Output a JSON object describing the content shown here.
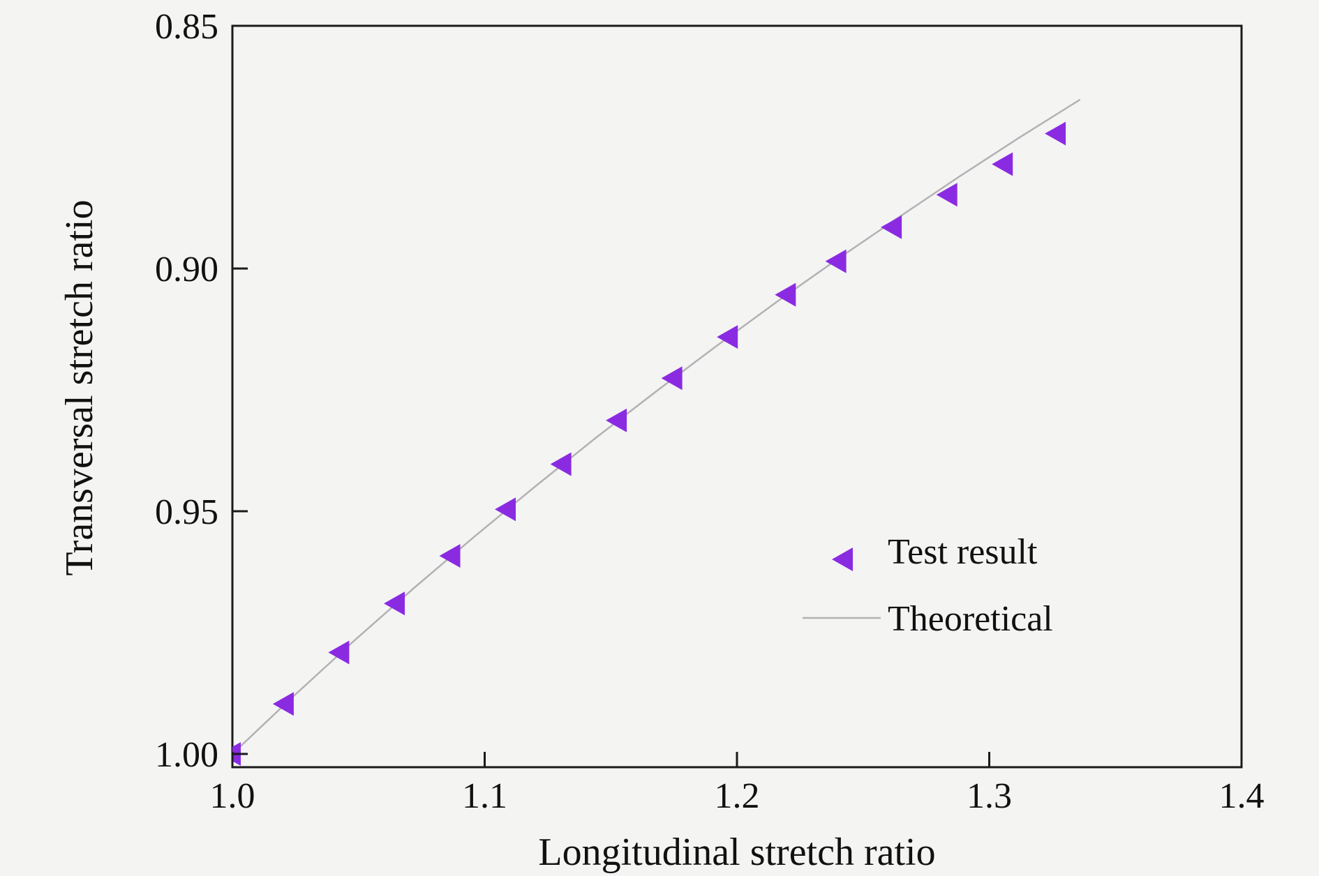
{
  "figure": {
    "background": "#f4f4f3",
    "frame_color": "#1a1a1a",
    "text_color": "#111111"
  },
  "chart_data": {
    "type": "scatter",
    "title": "",
    "xlabel": "Longitudinal stretch ratio",
    "ylabel": "Transversal stretch ratio",
    "xlim": [
      1.0,
      1.4
    ],
    "ylim": [
      0.85,
      1.0
    ],
    "y_axis_inverted": true,
    "grid": false,
    "x_ticks": [
      1.0,
      1.1,
      1.2,
      1.3,
      1.4
    ],
    "x_tick_labels": [
      "1.0",
      "1.1",
      "1.2",
      "1.3",
      "1.4"
    ],
    "y_ticks": [
      0.85,
      0.9,
      0.95,
      1.0
    ],
    "y_tick_labels": [
      "0.85",
      "0.90",
      "0.95",
      "1.00"
    ],
    "legend": {
      "position": "inside-right-center",
      "entries": [
        {
          "label": "Test result",
          "type": "marker",
          "marker": "left-triangle",
          "color": "#8A2BE2"
        },
        {
          "label": "Theoretical",
          "type": "line",
          "color": "#b3b1b5"
        }
      ]
    },
    "series": [
      {
        "name": "Test result",
        "type": "scatter",
        "marker": "left-triangle",
        "color": "#8A2BE2",
        "points": [
          [
            1.0,
            1.0
          ],
          [
            1.021,
            0.9897
          ],
          [
            1.043,
            0.9791
          ],
          [
            1.065,
            0.969
          ],
          [
            1.087,
            0.9592
          ],
          [
            1.109,
            0.9496
          ],
          [
            1.131,
            0.9403
          ],
          [
            1.153,
            0.9313
          ],
          [
            1.175,
            0.9226
          ],
          [
            1.197,
            0.9141
          ],
          [
            1.22,
            0.9054
          ],
          [
            1.24,
            0.8985
          ],
          [
            1.262,
            0.8915
          ],
          [
            1.284,
            0.8848
          ],
          [
            1.306,
            0.8785
          ],
          [
            1.327,
            0.8722
          ]
        ]
      },
      {
        "name": "Theoretical",
        "type": "line",
        "color": "#b3b1b5",
        "relation": "transversal = longitudinal^(-1/2)",
        "points": [
          [
            1.0,
            1.0
          ],
          [
            1.024,
            0.9882
          ],
          [
            1.048,
            0.9768
          ],
          [
            1.072,
            0.9658
          ],
          [
            1.096,
            0.9552
          ],
          [
            1.12,
            0.9449
          ],
          [
            1.144,
            0.9349
          ],
          [
            1.168,
            0.9253
          ],
          [
            1.192,
            0.9159
          ],
          [
            1.216,
            0.9068
          ],
          [
            1.24,
            0.898
          ],
          [
            1.264,
            0.8895
          ],
          [
            1.288,
            0.8811
          ],
          [
            1.312,
            0.873
          ],
          [
            1.336,
            0.8652
          ]
        ]
      }
    ]
  }
}
